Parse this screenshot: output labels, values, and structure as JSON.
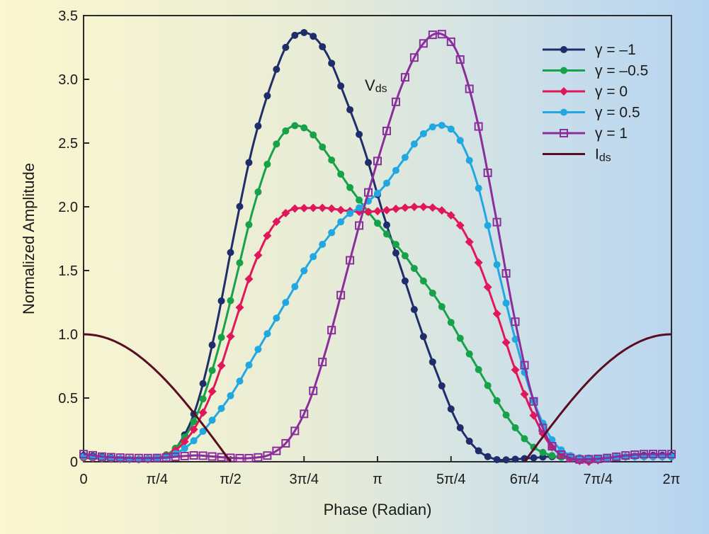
{
  "chart_data": {
    "type": "line",
    "title": "",
    "xlabel": "Phase (Radian)",
    "ylabel": "Normalized  Amplitude",
    "xlim": [
      0,
      6.2832
    ],
    "ylim": [
      0,
      3.5
    ],
    "grid": false,
    "legend_position": "top-right",
    "x_tick_labels": [
      "0",
      "π/4",
      "π/2",
      "3π/4",
      "π",
      "5π/4",
      "6π/4",
      "7π/4",
      "2π"
    ],
    "y_tick_labels": [
      "0",
      "0.5",
      "1.0",
      "1.5",
      "2.0",
      "2.5",
      "3.0",
      "3.5"
    ],
    "annotation": {
      "main": "V",
      "sub": "ds"
    },
    "series": [
      {
        "name": "γ = –1",
        "color": "#1f2d6b",
        "marker": "circle",
        "points": [
          [
            0,
            0.05
          ],
          [
            0.5,
            0.02
          ],
          [
            0.8,
            0.03
          ],
          [
            1.0,
            0.12
          ],
          [
            1.2,
            0.42
          ],
          [
            1.4,
            1.0
          ],
          [
            1.6,
            1.75
          ],
          [
            1.8,
            2.45
          ],
          [
            2.0,
            2.95
          ],
          [
            2.2,
            3.3
          ],
          [
            2.4,
            3.36
          ],
          [
            2.6,
            3.2
          ],
          [
            2.8,
            2.85
          ],
          [
            3.0,
            2.45
          ],
          [
            3.2,
            1.95
          ],
          [
            3.4,
            1.5
          ],
          [
            3.6,
            1.05
          ],
          [
            3.8,
            0.65
          ],
          [
            4.0,
            0.3
          ],
          [
            4.2,
            0.1
          ],
          [
            4.4,
            0.02
          ],
          [
            4.6,
            0.02
          ],
          [
            4.8,
            0.03
          ],
          [
            5.0,
            0.04
          ],
          [
            5.2,
            0.03
          ],
          [
            5.4,
            0.02
          ],
          [
            5.6,
            0.03
          ],
          [
            5.8,
            0.04
          ],
          [
            6.0,
            0.05
          ],
          [
            6.2832,
            0.05
          ]
        ]
      },
      {
        "name": "γ = –0.5",
        "color": "#17a24a",
        "marker": "circle",
        "points": [
          [
            0,
            0.03
          ],
          [
            0.5,
            0.02
          ],
          [
            0.8,
            0.03
          ],
          [
            1.0,
            0.12
          ],
          [
            1.2,
            0.35
          ],
          [
            1.4,
            0.78
          ],
          [
            1.6,
            1.35
          ],
          [
            1.8,
            1.95
          ],
          [
            2.0,
            2.4
          ],
          [
            2.2,
            2.62
          ],
          [
            2.4,
            2.6
          ],
          [
            2.6,
            2.42
          ],
          [
            2.8,
            2.2
          ],
          [
            3.0,
            2.0
          ],
          [
            3.2,
            1.82
          ],
          [
            3.4,
            1.65
          ],
          [
            3.6,
            1.45
          ],
          [
            3.8,
            1.25
          ],
          [
            4.0,
            1.0
          ],
          [
            4.2,
            0.75
          ],
          [
            4.4,
            0.5
          ],
          [
            4.6,
            0.28
          ],
          [
            4.8,
            0.12
          ],
          [
            5.0,
            0.05
          ],
          [
            5.2,
            0.03
          ],
          [
            5.4,
            0.02
          ],
          [
            5.6,
            0.03
          ],
          [
            5.8,
            0.04
          ],
          [
            6.0,
            0.04
          ],
          [
            6.2832,
            0.04
          ]
        ]
      },
      {
        "name": "γ = 0",
        "color": "#e0185a",
        "marker": "diamond",
        "points": [
          [
            0,
            0.03
          ],
          [
            0.5,
            0.02
          ],
          [
            0.8,
            0.03
          ],
          [
            1.0,
            0.1
          ],
          [
            1.2,
            0.28
          ],
          [
            1.4,
            0.6
          ],
          [
            1.6,
            1.05
          ],
          [
            1.8,
            1.5
          ],
          [
            2.0,
            1.82
          ],
          [
            2.2,
            1.97
          ],
          [
            2.4,
            1.99
          ],
          [
            2.6,
            1.99
          ],
          [
            2.8,
            1.97
          ],
          [
            3.0,
            1.96
          ],
          [
            3.2,
            1.97
          ],
          [
            3.4,
            1.99
          ],
          [
            3.6,
            2.0
          ],
          [
            3.8,
            1.98
          ],
          [
            4.0,
            1.88
          ],
          [
            4.2,
            1.6
          ],
          [
            4.4,
            1.2
          ],
          [
            4.6,
            0.75
          ],
          [
            4.8,
            0.38
          ],
          [
            5.0,
            0.12
          ],
          [
            5.2,
            0.03
          ],
          [
            5.4,
            0.0
          ],
          [
            5.6,
            0.03
          ],
          [
            5.8,
            0.04
          ],
          [
            6.0,
            0.04
          ],
          [
            6.2832,
            0.04
          ]
        ]
      },
      {
        "name": "γ = 0.5",
        "color": "#22a8e0",
        "marker": "circle",
        "points": [
          [
            0,
            0.04
          ],
          [
            0.5,
            0.02
          ],
          [
            0.8,
            0.03
          ],
          [
            1.0,
            0.07
          ],
          [
            1.2,
            0.18
          ],
          [
            1.4,
            0.35
          ],
          [
            1.6,
            0.55
          ],
          [
            1.8,
            0.8
          ],
          [
            2.0,
            1.05
          ],
          [
            2.2,
            1.3
          ],
          [
            2.4,
            1.55
          ],
          [
            2.6,
            1.75
          ],
          [
            2.8,
            1.92
          ],
          [
            3.0,
            2.02
          ],
          [
            3.2,
            2.15
          ],
          [
            3.4,
            2.35
          ],
          [
            3.6,
            2.55
          ],
          [
            3.8,
            2.64
          ],
          [
            4.0,
            2.55
          ],
          [
            4.2,
            2.2
          ],
          [
            4.4,
            1.6
          ],
          [
            4.6,
            1.0
          ],
          [
            4.8,
            0.5
          ],
          [
            5.0,
            0.18
          ],
          [
            5.2,
            0.05
          ],
          [
            5.4,
            0.03
          ],
          [
            5.6,
            0.03
          ],
          [
            5.8,
            0.04
          ],
          [
            6.0,
            0.04
          ],
          [
            6.2832,
            0.04
          ]
        ]
      },
      {
        "name": "γ = 1",
        "color": "#8a2e9b",
        "marker": "square-open",
        "points": [
          [
            0,
            0.06
          ],
          [
            0.2,
            0.04
          ],
          [
            0.5,
            0.03
          ],
          [
            0.8,
            0.03
          ],
          [
            1.0,
            0.04
          ],
          [
            1.2,
            0.05
          ],
          [
            1.4,
            0.04
          ],
          [
            1.6,
            0.03
          ],
          [
            1.8,
            0.03
          ],
          [
            2.0,
            0.06
          ],
          [
            2.2,
            0.18
          ],
          [
            2.4,
            0.45
          ],
          [
            2.6,
            0.9
          ],
          [
            2.8,
            1.45
          ],
          [
            3.0,
            2.0
          ],
          [
            3.2,
            2.5
          ],
          [
            3.4,
            2.95
          ],
          [
            3.6,
            3.25
          ],
          [
            3.8,
            3.36
          ],
          [
            4.0,
            3.2
          ],
          [
            4.2,
            2.7
          ],
          [
            4.4,
            1.95
          ],
          [
            4.6,
            1.15
          ],
          [
            4.8,
            0.5
          ],
          [
            5.0,
            0.13
          ],
          [
            5.2,
            0.03
          ],
          [
            5.4,
            0.02
          ],
          [
            5.6,
            0.03
          ],
          [
            5.8,
            0.05
          ],
          [
            6.0,
            0.06
          ],
          [
            6.2832,
            0.06
          ]
        ]
      },
      {
        "name": "Ids",
        "label_main": "I",
        "label_sub": "ds",
        "color": "#5a0c22",
        "marker": "none",
        "curve": "abs-cos-2x-gated"
      }
    ]
  }
}
